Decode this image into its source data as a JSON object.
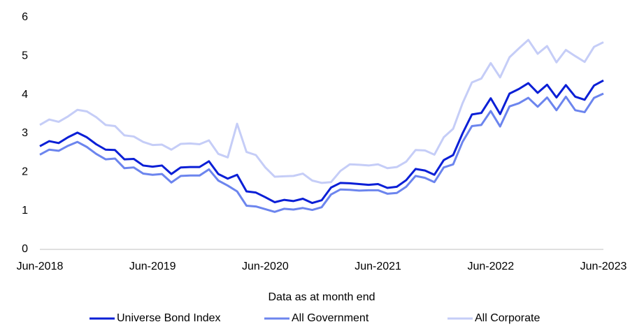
{
  "chart_data": {
    "type": "line",
    "x_label": "Data as at month end",
    "categories": [
      "Jun-2018",
      null,
      null,
      null,
      null,
      null,
      null,
      null,
      null,
      null,
      null,
      null,
      "Jun-2019",
      null,
      null,
      null,
      null,
      null,
      null,
      null,
      null,
      null,
      null,
      null,
      "Jun-2020",
      null,
      null,
      null,
      null,
      null,
      null,
      null,
      null,
      null,
      null,
      null,
      "Jun-2021",
      null,
      null,
      null,
      null,
      null,
      null,
      null,
      null,
      null,
      null,
      null,
      "Jun-2022",
      null,
      null,
      null,
      null,
      null,
      null,
      null,
      null,
      null,
      null,
      null,
      "Jun-2023"
    ],
    "series": [
      {
        "name": "Universe Bond Index",
        "color": "#0a1fd6",
        "values": [
          2.67,
          2.8,
          2.75,
          2.9,
          3.02,
          2.9,
          2.72,
          2.58,
          2.57,
          2.33,
          2.34,
          2.17,
          2.14,
          2.17,
          1.95,
          2.12,
          2.13,
          2.13,
          2.28,
          1.95,
          1.83,
          1.93,
          1.5,
          1.47,
          1.35,
          1.22,
          1.28,
          1.25,
          1.31,
          1.2,
          1.27,
          1.6,
          1.72,
          1.71,
          1.69,
          1.67,
          1.69,
          1.59,
          1.62,
          1.79,
          2.08,
          2.04,
          1.93,
          2.31,
          2.44,
          3.0,
          3.49,
          3.53,
          3.91,
          3.5,
          4.03,
          4.15,
          4.3,
          4.05,
          4.26,
          3.93,
          4.25,
          3.95,
          3.87,
          4.24,
          4.37
        ]
      },
      {
        "name": "All Government",
        "color": "#6c85ee",
        "values": [
          2.45,
          2.58,
          2.55,
          2.68,
          2.78,
          2.65,
          2.47,
          2.33,
          2.35,
          2.1,
          2.12,
          1.96,
          1.93,
          1.95,
          1.73,
          1.9,
          1.91,
          1.91,
          2.07,
          1.78,
          1.65,
          1.5,
          1.13,
          1.11,
          1.04,
          0.97,
          1.05,
          1.03,
          1.07,
          1.02,
          1.09,
          1.42,
          1.55,
          1.54,
          1.52,
          1.53,
          1.53,
          1.44,
          1.46,
          1.62,
          1.9,
          1.85,
          1.74,
          2.12,
          2.2,
          2.78,
          3.19,
          3.22,
          3.58,
          3.18,
          3.7,
          3.78,
          3.92,
          3.69,
          3.93,
          3.6,
          3.95,
          3.6,
          3.55,
          3.92,
          4.03
        ]
      },
      {
        "name": "All Corporate",
        "color": "#c5cdf7",
        "values": [
          3.22,
          3.36,
          3.3,
          3.44,
          3.61,
          3.57,
          3.42,
          3.22,
          3.19,
          2.95,
          2.92,
          2.78,
          2.7,
          2.71,
          2.58,
          2.73,
          2.74,
          2.72,
          2.82,
          2.47,
          2.38,
          3.25,
          2.52,
          2.44,
          2.12,
          1.88,
          1.89,
          1.9,
          1.96,
          1.78,
          1.72,
          1.74,
          2.03,
          2.2,
          2.19,
          2.17,
          2.2,
          2.1,
          2.13,
          2.27,
          2.57,
          2.56,
          2.45,
          2.9,
          3.12,
          3.78,
          4.32,
          4.42,
          4.82,
          4.45,
          4.97,
          5.2,
          5.42,
          5.06,
          5.26,
          4.84,
          5.16,
          5.0,
          4.85,
          5.24,
          5.36
        ]
      }
    ],
    "ylim": [
      0,
      6
    ],
    "yticks": [
      0,
      1,
      2,
      3,
      4,
      5,
      6
    ],
    "grid": false,
    "legend": "bottom"
  }
}
